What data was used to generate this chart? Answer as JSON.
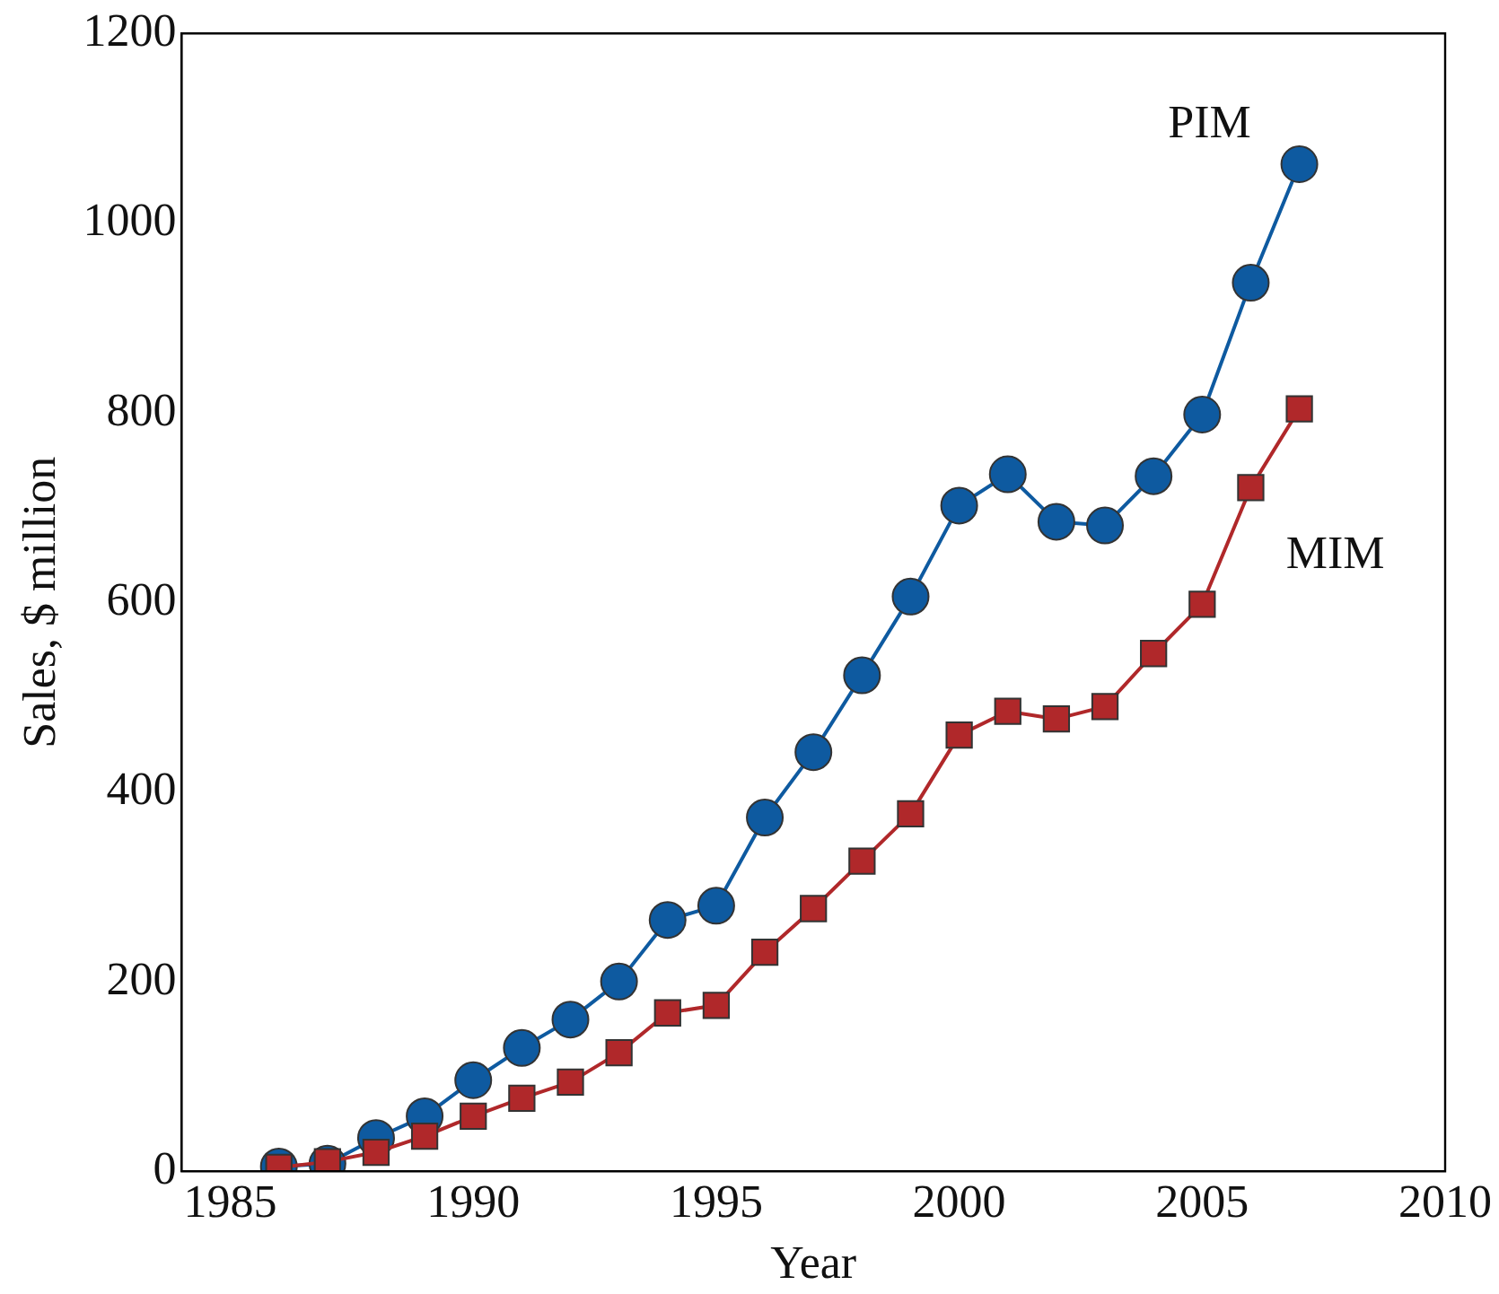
{
  "chart_data": {
    "type": "line",
    "xlabel": "Year",
    "ylabel": "Sales, $ million",
    "x": [
      1986,
      1987,
      1988,
      1989,
      1990,
      1991,
      1992,
      1993,
      1994,
      1995,
      1996,
      1997,
      1998,
      1999,
      2000,
      2001,
      2002,
      2003,
      2004,
      2005,
      2006,
      2007
    ],
    "series": [
      {
        "name": "PIM",
        "color": "#0e5aa0",
        "marker": "circle",
        "values": [
          5,
          8,
          35,
          58,
          96,
          130,
          160,
          200,
          265,
          280,
          373,
          442,
          523,
          606,
          702,
          735,
          685,
          681,
          733,
          798,
          937,
          1062
        ]
      },
      {
        "name": "MIM",
        "color": "#b0282a",
        "marker": "square",
        "values": [
          4,
          10,
          20,
          37,
          58,
          77,
          94,
          125,
          167,
          175,
          231,
          277,
          327,
          377,
          460,
          485,
          477,
          490,
          546,
          598,
          721,
          804
        ]
      }
    ],
    "xlim": [
      1984,
      2010
    ],
    "xticks": [
      1985,
      1990,
      1995,
      2000,
      2005,
      2010
    ],
    "ylim": [
      0,
      1200
    ],
    "yticks": [
      0,
      200,
      400,
      600,
      800,
      1000,
      1200
    ],
    "grid": false,
    "legend": false
  }
}
